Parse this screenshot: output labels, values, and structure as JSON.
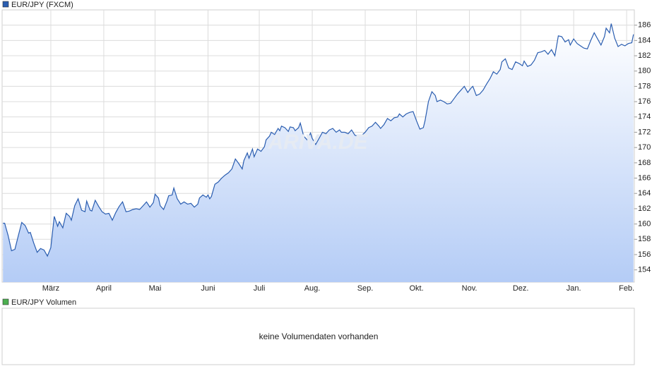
{
  "chart_data": {
    "type": "area",
    "series": [
      {
        "name": "EUR/JPY (FXCM)",
        "color": "#2a5db0",
        "values": [
          160.1,
          160.1,
          158.5,
          156.5,
          156.7,
          158.5,
          160.2,
          159.8,
          158.8,
          158.9,
          157.5,
          156.3,
          156.8,
          156.6,
          155.8,
          156.9,
          161.0,
          159.7,
          160.3,
          159.5,
          161.4,
          161.0,
          160.5,
          162.4,
          163.3,
          161.8,
          161.6,
          163.0,
          161.8,
          161.7,
          163.1,
          162.3,
          161.6,
          161.3,
          161.4,
          160.5,
          161.5,
          162.3,
          162.9,
          161.6,
          161.7,
          161.9,
          162.0,
          161.9,
          162.4,
          162.9,
          162.2,
          162.8,
          163.9,
          163.4,
          162.4,
          161.9,
          163.0,
          163.7,
          163.8,
          164.7,
          163.3,
          162.6,
          162.9,
          162.6,
          162.7,
          162.2,
          162.6,
          163.4,
          163.8,
          163.5,
          163.8,
          163.3,
          163.6,
          165.2,
          165.5,
          166.0,
          166.4,
          166.7,
          167.2,
          168.5,
          167.9,
          167.2,
          168.3,
          169.3,
          168.6,
          169.8,
          168.8,
          169.8,
          169.5,
          170.1,
          171.0,
          171.5,
          172.0,
          171.7,
          172.5,
          172.2,
          172.8,
          172.6,
          172.1,
          172.7,
          172.6,
          172.2,
          172.6,
          173.2,
          171.5,
          171.0,
          171.9,
          171.2,
          170.4,
          171.2,
          172.0,
          171.8,
          172.3,
          172.5,
          172.0,
          172.3,
          172.0,
          172.0,
          171.8,
          172.3,
          171.6,
          171.5,
          171.6,
          172.0,
          172.6,
          172.8,
          173.3,
          172.8,
          172.5,
          173.0,
          173.8,
          173.5,
          173.9,
          174.0,
          174.4,
          174.0,
          174.4,
          174.6,
          174.7,
          173.5,
          172.4,
          172.6,
          173.5,
          176.0,
          177.3,
          176.8,
          176.0,
          176.2,
          176.0,
          175.7,
          175.8,
          176.4,
          177.0,
          177.5,
          178.0,
          177.2,
          177.8,
          178.0,
          176.8,
          177.0,
          177.5,
          178.3,
          179.0,
          179.9,
          179.6,
          180.2,
          181.2,
          181.6,
          180.4,
          180.2,
          181.2,
          181.0,
          180.7,
          181.3,
          180.6,
          180.8,
          181.4,
          182.4,
          182.5,
          182.7,
          182.2,
          182.8,
          182.0,
          184.6,
          184.5,
          183.8,
          184.1,
          183.4,
          184.2,
          183.6,
          183.3,
          183.0,
          182.9,
          184.0,
          185.0,
          184.2,
          183.4,
          184.5,
          185.6,
          185.0,
          186.2,
          184.3,
          183.2,
          183.5,
          183.3,
          183.6,
          183.7,
          184.8
        ]
      }
    ],
    "x": [
      0,
      1,
      3,
      5,
      7,
      9,
      11,
      13,
      15,
      16,
      18,
      20,
      22,
      24,
      26,
      28,
      30,
      32,
      33,
      35,
      37,
      39,
      40,
      42,
      44,
      46,
      48,
      49,
      51,
      52,
      54,
      56,
      58,
      60,
      62,
      64,
      66,
      68,
      70,
      72,
      74,
      76,
      78,
      80,
      82,
      84,
      86,
      88,
      89,
      91,
      92,
      94,
      96,
      97,
      99,
      100,
      102,
      104,
      106,
      108,
      110,
      112,
      114,
      115,
      117,
      119,
      120,
      121,
      122,
      124,
      126,
      128,
      130,
      132,
      134,
      136,
      138,
      140,
      141,
      143,
      144,
      146,
      147,
      149,
      151,
      153,
      154,
      156,
      157,
      159,
      161,
      162,
      163,
      165,
      167,
      168,
      170,
      171,
      173,
      174,
      176,
      178,
      180,
      181,
      183,
      185,
      187,
      189,
      191,
      193,
      195,
      197,
      198,
      200,
      202,
      204,
      206,
      208,
      210,
      212,
      214,
      216,
      218,
      220,
      221,
      223,
      225,
      227,
      229,
      231,
      232,
      234,
      236,
      238,
      240,
      242,
      244,
      246,
      247,
      249,
      251,
      253,
      254,
      256,
      258,
      260,
      262,
      264,
      266,
      268,
      270,
      272,
      274,
      275,
      277,
      279,
      281,
      283,
      285,
      287,
      289,
      291,
      292,
      294,
      296,
      298,
      300,
      302,
      304,
      305,
      307,
      309,
      311,
      313,
      315,
      317,
      319,
      321,
      323,
      325,
      327,
      329,
      331,
      332,
      334,
      336,
      338,
      340,
      342,
      344,
      346,
      348,
      350,
      352,
      353,
      355,
      356,
      358,
      360,
      362,
      364,
      366,
      368,
      369
    ],
    "xlim": [
      -0.5,
      369.5
    ],
    "xticks": [
      {
        "value": 28,
        "label": "März"
      },
      {
        "value": 59,
        "label": "April"
      },
      {
        "value": 89,
        "label": "Mai"
      },
      {
        "value": 120,
        "label": "Juni"
      },
      {
        "value": 150,
        "label": "Juli"
      },
      {
        "value": 181,
        "label": "Aug."
      },
      {
        "value": 212,
        "label": "Sep."
      },
      {
        "value": 242,
        "label": "Okt."
      },
      {
        "value": 273,
        "label": "Nov."
      },
      {
        "value": 303,
        "label": "Dez."
      },
      {
        "value": 334,
        "label": "Jan."
      },
      {
        "value": 365,
        "label": "Feb."
      }
    ],
    "ylim": [
      152.4,
      188
    ],
    "yticks": [
      154,
      156,
      158,
      160,
      162,
      164,
      166,
      168,
      170,
      172,
      174,
      176,
      178,
      180,
      182,
      184,
      186
    ],
    "grid": true,
    "watermark": "ARIVA.DE"
  },
  "volume_chart": {
    "legend": "EUR/JPY Volumen",
    "legend_color": "#4caf50",
    "message": "keine Volumendaten vorhanden"
  }
}
